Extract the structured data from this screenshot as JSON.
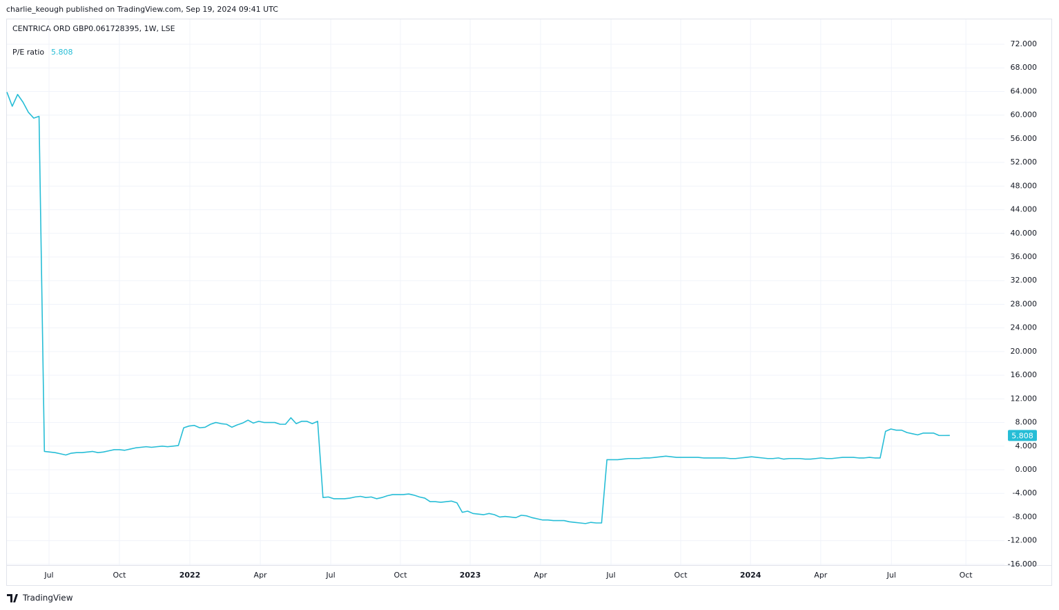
{
  "header": {
    "publisher": "charlie_keough published on TradingView.com, Sep 19, 2024 09:41 UTC"
  },
  "footer": {
    "brand": "TradingView"
  },
  "chart_data": {
    "type": "line",
    "title": "CENTRICA ORD GBP0.061728395, 1W, LSE",
    "current_value": 5.808,
    "series": [
      {
        "name": "P/E ratio",
        "color": "#26bdd6",
        "values": [
          63.9,
          61.5,
          63.5,
          62.2,
          60.5,
          59.5,
          59.8,
          3.1,
          3.0,
          2.9,
          2.7,
          2.5,
          2.8,
          2.9,
          2.9,
          3.0,
          3.1,
          2.9,
          3.0,
          3.2,
          3.4,
          3.4,
          3.3,
          3.5,
          3.7,
          3.8,
          3.9,
          3.8,
          3.9,
          4.0,
          3.9,
          4.0,
          4.1,
          7.1,
          7.4,
          7.5,
          7.1,
          7.2,
          7.7,
          8.0,
          7.8,
          7.7,
          7.2,
          7.6,
          7.9,
          8.4,
          7.9,
          8.2,
          8.0,
          8.0,
          8.0,
          7.7,
          7.7,
          8.8,
          7.8,
          8.2,
          8.2,
          7.8,
          8.2,
          -4.7,
          -4.6,
          -4.9,
          -4.9,
          -4.9,
          -4.8,
          -4.6,
          -4.5,
          -4.7,
          -4.6,
          -4.9,
          -4.7,
          -4.4,
          -4.2,
          -4.2,
          -4.2,
          -4.1,
          -4.3,
          -4.6,
          -4.8,
          -5.4,
          -5.4,
          -5.5,
          -5.4,
          -5.3,
          -5.6,
          -7.2,
          -7.0,
          -7.4,
          -7.5,
          -7.6,
          -7.4,
          -7.6,
          -8.0,
          -7.9,
          -8.0,
          -8.1,
          -7.7,
          -7.8,
          -8.1,
          -8.3,
          -8.5,
          -8.5,
          -8.6,
          -8.6,
          -8.6,
          -8.8,
          -8.9,
          -9.0,
          -9.1,
          -8.9,
          -9.0,
          -9.0,
          1.7,
          1.7,
          1.7,
          1.8,
          1.9,
          1.9,
          1.9,
          2.0,
          2.0,
          2.1,
          2.2,
          2.3,
          2.2,
          2.1,
          2.1,
          2.1,
          2.1,
          2.1,
          2.0,
          2.0,
          2.0,
          2.0,
          2.0,
          1.9,
          1.9,
          2.0,
          2.1,
          2.2,
          2.1,
          2.0,
          1.9,
          1.9,
          2.0,
          1.8,
          1.9,
          1.9,
          1.9,
          1.8,
          1.8,
          1.9,
          2.0,
          1.9,
          1.9,
          2.0,
          2.1,
          2.1,
          2.1,
          2.0,
          2.0,
          2.1,
          2.0,
          2.0,
          6.5,
          6.9,
          6.7,
          6.7,
          6.3,
          6.1,
          5.9,
          6.2,
          6.2,
          6.2,
          5.8,
          5.8,
          5.808
        ]
      }
    ],
    "xlim": [
      0,
      186.2
    ],
    "xticks": [
      {
        "value": 7.86,
        "label": "Jul"
      },
      {
        "value": 21.0,
        "label": "Oct"
      },
      {
        "value": 34.15,
        "label": "2022"
      },
      {
        "value": 47.3,
        "label": "Apr"
      },
      {
        "value": 60.44,
        "label": "Jul"
      },
      {
        "value": 73.45,
        "label": "Oct"
      },
      {
        "value": 86.47,
        "label": "2023"
      },
      {
        "value": 99.6,
        "label": "Apr"
      },
      {
        "value": 112.76,
        "label": "Jul"
      },
      {
        "value": 125.77,
        "label": "Oct"
      },
      {
        "value": 138.8,
        "label": "2024"
      },
      {
        "value": 151.9,
        "label": "Apr"
      },
      {
        "value": 165.1,
        "label": "Jul"
      },
      {
        "value": 179.0,
        "label": "Oct"
      }
    ],
    "ylim": [
      -16.13,
      72.47
    ],
    "yticks": [
      {
        "value": -16,
        "label": "-16.000"
      },
      {
        "value": -12,
        "label": "-12.000"
      },
      {
        "value": -8,
        "label": "-8.000"
      },
      {
        "value": -4,
        "label": "-4.000"
      },
      {
        "value": 0,
        "label": "0.000"
      },
      {
        "value": 4,
        "label": "4.000"
      },
      {
        "value": 8,
        "label": "8.000"
      },
      {
        "value": 12,
        "label": "12.000"
      },
      {
        "value": 16,
        "label": "16.000"
      },
      {
        "value": 20,
        "label": "20.000"
      },
      {
        "value": 24,
        "label": "24.000"
      },
      {
        "value": 28,
        "label": "28.000"
      },
      {
        "value": 32,
        "label": "32.000"
      },
      {
        "value": 36,
        "label": "36.000"
      },
      {
        "value": 40,
        "label": "40.000"
      },
      {
        "value": 44,
        "label": "44.000"
      },
      {
        "value": 48,
        "label": "48.000"
      },
      {
        "value": 52,
        "label": "52.000"
      },
      {
        "value": 56,
        "label": "56.000"
      },
      {
        "value": 60,
        "label": "60.000"
      },
      {
        "value": 64,
        "label": "64.000"
      },
      {
        "value": 68,
        "label": "68.000"
      },
      {
        "value": 72,
        "label": "72.000"
      }
    ],
    "grid": true
  }
}
